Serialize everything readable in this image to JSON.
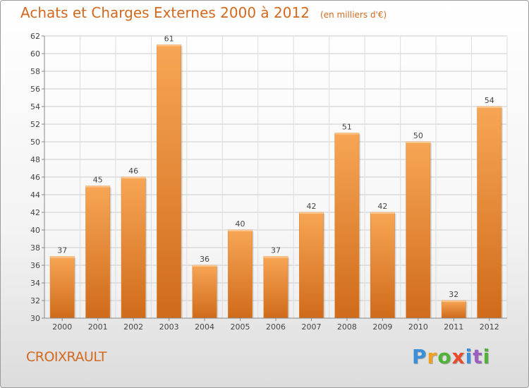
{
  "title": "Achats et Charges Externes 2000 à 2012",
  "unit": "(en milliers d'€)",
  "commune": "CROIXRAULT",
  "logo": {
    "letters": [
      "P",
      "r",
      "o",
      "x",
      "i",
      "t",
      "i"
    ],
    "colors": [
      "#3a8fd8",
      "#f0a020",
      "#4fb33a",
      "#e84a2a",
      "#3a8fd8",
      "#9c5fc2",
      "#4fb33a"
    ]
  },
  "chart_data": {
    "type": "bar",
    "categories": [
      "2000",
      "2001",
      "2002",
      "2003",
      "2004",
      "2005",
      "2006",
      "2007",
      "2008",
      "2009",
      "2010",
      "2011",
      "2012"
    ],
    "values": [
      37,
      45,
      46,
      61,
      36,
      40,
      37,
      42,
      51,
      42,
      50,
      32,
      54
    ],
    "title": "Achats et Charges Externes 2000 à 2012",
    "ylim": [
      30,
      62
    ],
    "yticks": [
      30,
      32,
      34,
      36,
      38,
      40,
      42,
      44,
      46,
      48,
      50,
      52,
      54,
      56,
      58,
      60,
      62
    ],
    "grid": true,
    "bar_color": "#f0a04b"
  }
}
